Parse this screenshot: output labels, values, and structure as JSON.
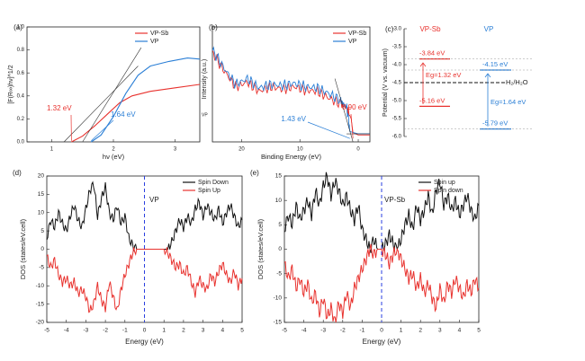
{
  "colors": {
    "red": "#e8322e",
    "blue": "#2b7fd6",
    "black": "#111111",
    "gray": "#888888"
  },
  "chart_data": [
    {
      "id": "a",
      "type": "line",
      "panel_label": "(a)",
      "xlabel": "hν (eV)",
      "ylabel": "[F(R∞)hν]^1/2",
      "xlim": [
        0.6,
        3.4
      ],
      "ylim": [
        0,
        1.0
      ],
      "xticks": [
        "1",
        "2",
        "3"
      ],
      "yticks": [
        "0.0",
        "0.2",
        "0.4",
        "0.6",
        "0.8",
        "1.0"
      ],
      "legend": [
        "VP-Sb",
        "VP"
      ],
      "legend_position": "top-right",
      "series": [
        {
          "name": "VP-Sb",
          "color": "red",
          "x": [
            1.32,
            1.5,
            1.7,
            1.9,
            2.1,
            2.3,
            2.6,
            3.0,
            3.4
          ],
          "y": [
            0.0,
            0.05,
            0.14,
            0.24,
            0.34,
            0.4,
            0.44,
            0.47,
            0.5
          ]
        },
        {
          "name": "VP",
          "color": "blue",
          "x": [
            1.64,
            1.8,
            2.0,
            2.2,
            2.4,
            2.6,
            2.9,
            3.2,
            3.4
          ],
          "y": [
            0.0,
            0.06,
            0.22,
            0.42,
            0.58,
            0.66,
            0.7,
            0.73,
            0.72
          ]
        }
      ],
      "annotations": [
        "1.32 eV",
        "1.64 eV",
        "VP"
      ]
    },
    {
      "id": "b",
      "type": "line",
      "panel_label": "(b)",
      "xlabel": "Binding Energy (eV)",
      "ylabel": "Intensity (a.u.)",
      "xlim": [
        25,
        -2
      ],
      "xticks": [
        "20",
        "10",
        "0"
      ],
      "legend": [
        "VP-Sb",
        "VP"
      ],
      "legend_position": "top-right",
      "series": [
        {
          "name": "VP-Sb",
          "color": "red",
          "x": [
            25,
            23,
            21,
            19,
            17,
            15,
            13,
            11,
            9,
            7,
            5,
            3,
            2,
            1.2,
            0.9,
            0,
            -2
          ],
          "y": [
            0.78,
            0.62,
            0.48,
            0.52,
            0.44,
            0.48,
            0.46,
            0.48,
            0.45,
            0.44,
            0.38,
            0.33,
            0.3,
            0.2,
            0.08,
            0.06,
            0.06
          ]
        },
        {
          "name": "VP",
          "color": "blue",
          "x": [
            25,
            23,
            21,
            19,
            17,
            15,
            13,
            11,
            9,
            7,
            5,
            3,
            2,
            1.6,
            1.43,
            0,
            -2
          ],
          "y": [
            0.8,
            0.64,
            0.5,
            0.55,
            0.47,
            0.5,
            0.49,
            0.51,
            0.48,
            0.47,
            0.42,
            0.36,
            0.3,
            0.18,
            0.09,
            0.07,
            0.07
          ]
        }
      ],
      "annotations": [
        "1.43 eV",
        "0.90 eV"
      ]
    },
    {
      "id": "c",
      "type": "diagram",
      "panel_label": "(c)",
      "ylabel": "Potential (V vs. vacuum)",
      "ylim": [
        -6.0,
        -3.0
      ],
      "yticks": [
        "-3.0",
        "-3.5",
        "-4.0",
        "-4.5",
        "-5.0",
        "-5.5",
        "-6.0"
      ],
      "columns": [
        "VP-Sb",
        "VP"
      ],
      "levels": [
        {
          "material": "VP-Sb",
          "type": "CB",
          "value": -3.84,
          "label": "-3.84 eV"
        },
        {
          "material": "VP-Sb",
          "type": "VB",
          "value": -5.16,
          "label": "-5.16 eV"
        },
        {
          "material": "VP",
          "type": "CB",
          "value": -4.15,
          "label": "-4.15 eV"
        },
        {
          "material": "VP",
          "type": "VB",
          "value": -5.79,
          "label": "-5.79 eV"
        }
      ],
      "reference": {
        "value": -4.5,
        "label": "H₂/H₂O"
      },
      "gaps": [
        "Eg=1.32 eV",
        "Eg=1.64 eV"
      ]
    },
    {
      "id": "d",
      "type": "line",
      "panel_label": "(d)",
      "xlabel": "Energy (eV)",
      "ylabel": "DOS (states/eV.cell)",
      "xlim": [
        -5,
        5
      ],
      "ylim": [
        -20,
        20
      ],
      "xticks": [
        "-5",
        "-4",
        "-3",
        "-2",
        "-1",
        "0",
        "1",
        "2",
        "3",
        "4",
        "5"
      ],
      "yticks": [
        "20",
        "15",
        "10",
        "5",
        "0",
        "-5",
        "-10",
        "-15",
        "-20"
      ],
      "legend": [
        "Spin Down",
        "Spin Up"
      ],
      "legend_position": "top-right",
      "annotation": "VP",
      "series": [
        {
          "name": "Spin Down",
          "color": "black",
          "x": [
            -5,
            -4.8,
            -4.6,
            -4.4,
            -4.2,
            -4.0,
            -3.8,
            -3.6,
            -3.4,
            -3.2,
            -3.0,
            -2.8,
            -2.6,
            -2.4,
            -2.2,
            -2.0,
            -1.8,
            -1.6,
            -1.4,
            -1.2,
            -1.0,
            -0.8,
            -0.6,
            -0.4,
            -0.2,
            0.0,
            0.2,
            0.4,
            0.6,
            0.8,
            1.0,
            1.2,
            1.4,
            1.6,
            1.8,
            2.0,
            2.2,
            2.4,
            2.6,
            2.8,
            3.0,
            3.2,
            3.4,
            3.6,
            3.8,
            4.0,
            4.2,
            4.4,
            4.6,
            4.8,
            5.0
          ],
          "y": [
            3,
            8,
            6,
            10,
            7,
            5,
            9,
            12,
            8,
            6,
            11,
            16,
            18,
            9,
            14,
            17,
            10,
            8,
            12,
            7,
            9,
            3,
            1,
            0,
            0,
            0,
            0,
            0,
            0,
            0,
            0,
            0,
            2,
            5,
            8,
            6,
            9,
            7,
            11,
            13,
            9,
            12,
            10,
            8,
            11,
            7,
            10,
            12,
            9,
            6,
            8
          ]
        },
        {
          "name": "Spin Up",
          "color": "red",
          "x": [
            -5,
            -4.8,
            -4.6,
            -4.4,
            -4.2,
            -4.0,
            -3.8,
            -3.6,
            -3.4,
            -3.2,
            -3.0,
            -2.8,
            -2.6,
            -2.4,
            -2.2,
            -2.0,
            -1.8,
            -1.6,
            -1.4,
            -1.2,
            -1.0,
            -0.8,
            -0.6,
            -0.4,
            -0.2,
            0.0,
            0.2,
            0.4,
            0.6,
            0.8,
            1.0,
            1.2,
            1.4,
            1.6,
            1.8,
            2.0,
            2.2,
            2.4,
            2.6,
            2.8,
            3.0,
            3.2,
            3.4,
            3.6,
            3.8,
            4.0,
            4.2,
            4.4,
            4.6,
            4.8,
            5.0
          ],
          "y": [
            -2,
            -5,
            -3,
            -7,
            -9,
            -8,
            -10,
            -9,
            -12,
            -11,
            -13,
            -17,
            -15,
            -10,
            -14,
            -16,
            -9,
            -13,
            -17,
            -11,
            -7,
            -4,
            -1,
            0,
            0,
            0,
            0,
            0,
            0,
            0,
            0,
            -1,
            -3,
            -5,
            -4,
            -7,
            -5,
            -9,
            -12,
            -8,
            -10,
            -11,
            -7,
            -9,
            -6,
            -4,
            -7,
            -9,
            -6,
            -10,
            -8
          ]
        }
      ]
    },
    {
      "id": "e",
      "type": "line",
      "panel_label": "(e)",
      "xlabel": "Energy (eV)",
      "ylabel": "DOS (states/eV.cell)",
      "xlim": [
        -5,
        5
      ],
      "ylim": [
        -15,
        15
      ],
      "xticks": [
        "-5",
        "-4",
        "-3",
        "-2",
        "-1",
        "0",
        "1",
        "2",
        "3",
        "4",
        "5"
      ],
      "yticks": [
        "15",
        "10",
        "5",
        "0",
        "-5",
        "-10",
        "-15"
      ],
      "legend": [
        "Spin up",
        "Spin down"
      ],
      "legend_position": "top-right",
      "annotation": "VP-Sb",
      "series": [
        {
          "name": "Spin up",
          "color": "black",
          "x": [
            -5,
            -4.8,
            -4.6,
            -4.4,
            -4.2,
            -4.0,
            -3.8,
            -3.6,
            -3.4,
            -3.2,
            -3.0,
            -2.8,
            -2.6,
            -2.4,
            -2.2,
            -2.0,
            -1.8,
            -1.6,
            -1.4,
            -1.2,
            -1.0,
            -0.8,
            -0.6,
            -0.4,
            -0.2,
            0.0,
            0.2,
            0.4,
            0.6,
            0.8,
            1.0,
            1.2,
            1.4,
            1.6,
            1.8,
            2.0,
            2.2,
            2.4,
            2.6,
            2.8,
            3.0,
            3.2,
            3.4,
            3.6,
            3.8,
            4.0,
            4.2,
            4.4,
            4.6,
            4.8,
            5.0
          ],
          "y": [
            4,
            7,
            5,
            9,
            6,
            8,
            10,
            7,
            12,
            9,
            13,
            15,
            11,
            14,
            12,
            9,
            11,
            8,
            6,
            9,
            4,
            2,
            0,
            2,
            0,
            0,
            1,
            3,
            1,
            0,
            2,
            5,
            7,
            4,
            9,
            6,
            8,
            11,
            7,
            12,
            14,
            9,
            11,
            8,
            10,
            7,
            9,
            11,
            8,
            6,
            9
          ]
        },
        {
          "name": "Spin down",
          "color": "red",
          "x": [
            -5,
            -4.8,
            -4.6,
            -4.4,
            -4.2,
            -4.0,
            -3.8,
            -3.6,
            -3.4,
            -3.2,
            -3.0,
            -2.8,
            -2.6,
            -2.4,
            -2.2,
            -2.0,
            -1.8,
            -1.6,
            -1.4,
            -1.2,
            -1.0,
            -0.8,
            -0.6,
            -0.4,
            -0.2,
            0.0,
            0.2,
            0.4,
            0.6,
            0.8,
            1.0,
            1.2,
            1.4,
            1.6,
            1.8,
            2.0,
            2.2,
            2.4,
            2.6,
            2.8,
            3.0,
            3.2,
            3.4,
            3.6,
            3.8,
            4.0,
            4.2,
            4.4,
            4.6,
            4.8,
            5.0
          ],
          "y": [
            -3,
            -6,
            -4,
            -8,
            -6,
            -9,
            -7,
            -11,
            -9,
            -13,
            -10,
            -14,
            -12,
            -15,
            -11,
            -13,
            -9,
            -12,
            -8,
            -6,
            -4,
            -2,
            0,
            -1,
            0,
            0,
            -1,
            -3,
            -1,
            0,
            -2,
            -4,
            -6,
            -5,
            -8,
            -6,
            -9,
            -7,
            -10,
            -12,
            -8,
            -11,
            -7,
            -9,
            -6,
            -8,
            -10,
            -7,
            -9,
            -6,
            -8
          ]
        }
      ]
    }
  ]
}
